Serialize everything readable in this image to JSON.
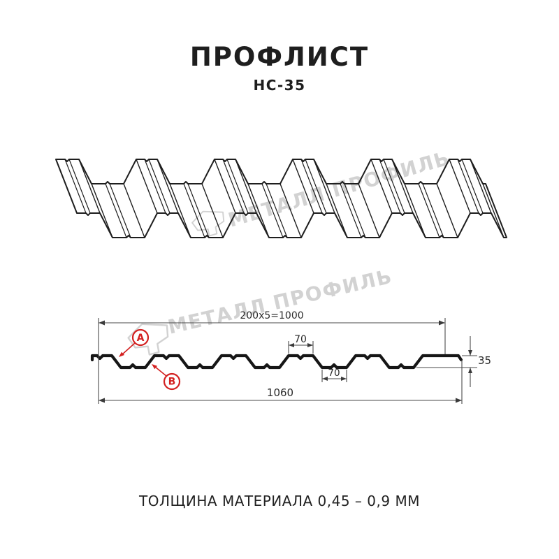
{
  "header": {
    "title": "ПРОФЛИСТ",
    "subtitle": "НС-35"
  },
  "watermark": {
    "brand": "МЕТАЛЛ ПРОФИЛЬ"
  },
  "section": {
    "dim_working_width": "200x5=1000",
    "dim_rib_top_width": "70",
    "dim_rib_bottom_width": "70",
    "dim_profile_height": "35",
    "dim_overall_width": "1060",
    "label_a": "А",
    "label_b": "В"
  },
  "footer": {
    "thickness_note": "ТОЛЩИНА МАТЕРИАЛА 0,45 – 0,9 ММ"
  },
  "colors": {
    "line": "#1e1e1e",
    "dim_line": "#4a4a4a",
    "accent_red": "#d32020",
    "watermark_gray": "#d2d2d2",
    "background": "#ffffff"
  }
}
